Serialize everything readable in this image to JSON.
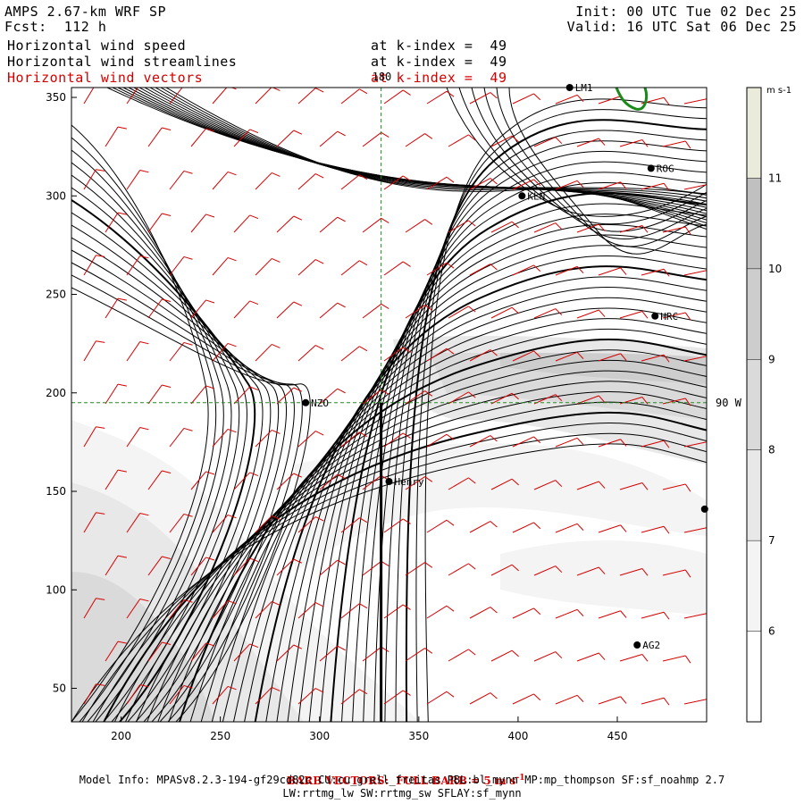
{
  "header": {
    "model": "AMPS 2.67-km WRF SP",
    "forecast": "Fcst:  112 h",
    "init": "Init: 00 UTC Tue 02 Dec 25",
    "valid": "Valid: 16 UTC Sat 06 Dec 25",
    "fields": [
      {
        "name": "Horizontal wind speed",
        "level": "at k-index =  49",
        "color": "#000000"
      },
      {
        "name": "Horizontal wind streamlines",
        "level": "at k-index =  49",
        "color": "#000000"
      },
      {
        "name": "Horizontal wind vectors",
        "level": "at k-index =  49",
        "color": "#d40000"
      }
    ]
  },
  "chart_data": {
    "type": "heatmap",
    "title": "Horizontal wind speed / streamlines / vectors at k-index = 49",
    "xlim": [
      175,
      495
    ],
    "ylim": [
      33,
      355
    ],
    "xticks": [
      200,
      250,
      300,
      350,
      400,
      450
    ],
    "yticks": [
      50,
      100,
      150,
      200,
      250,
      300,
      350
    ],
    "colorbar": {
      "unit": "m s-1",
      "range": [
        5,
        12
      ],
      "ticks": [
        6,
        7,
        8,
        9,
        10,
        11
      ],
      "fills": [
        "#ffffff",
        "#f4f4f4",
        "#e8e8e8",
        "#dadada",
        "#cdcdcd",
        "#c0c0c0",
        "#ebebdc"
      ]
    },
    "stations": [
      {
        "label": "NZO",
        "x": 293,
        "y": 195
      },
      {
        "label": "Henry",
        "x": 335,
        "y": 155
      },
      {
        "label": "KLN",
        "x": 402,
        "y": 300
      },
      {
        "label": "ROG",
        "x": 467,
        "y": 314
      },
      {
        "label": "HRC",
        "x": 469,
        "y": 239
      },
      {
        "label": "AG2",
        "x": 460,
        "y": 72
      },
      {
        "label": "LM1",
        "x": 426,
        "y": 355
      },
      {
        "label": "",
        "x": 494,
        "y": 141
      }
    ],
    "reference_lines": {
      "vertical_x": 331,
      "vertical_label": "180",
      "horizontal_y": 195,
      "horizontal_label": "90 W"
    },
    "cross_section_line": {
      "x": 331,
      "y_from": 33,
      "y_to": 195
    },
    "barb_note": "BARB VECTORS:  FULL BARB = 5 m s",
    "barb_note_sup": "-1",
    "colors": {
      "barb": "#d40000",
      "guide": "#228b22",
      "contour": "#1a8a1a"
    }
  },
  "footer": {
    "model_info": "Model Info: MPASv8.2.3-194-gf29cd82c CU:cu_grell_freitas PBL:bl_mynn MP:mp_thompson SF:sf_noahmp 2.7",
    "physics": "LW:rrtmg_lw SW:rrtmg_sw SFLAY:sf_mynn"
  }
}
